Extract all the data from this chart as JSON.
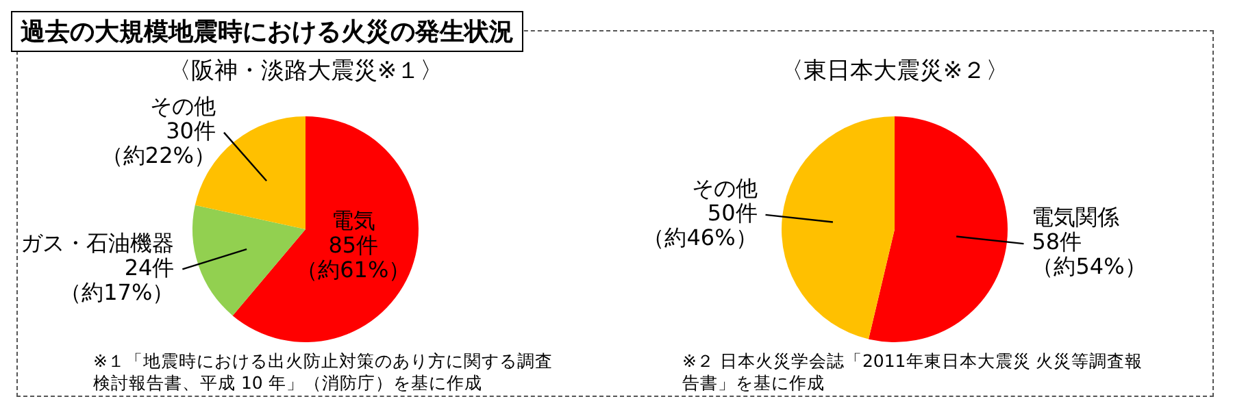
{
  "chart_data": [
    {
      "type": "pie",
      "title": "過去の大規模地震時における火災の発生状況",
      "subtitle": "〈阪神・淡路大震災※１〉",
      "categories": [
        "電気",
        "ガス・石油機器",
        "その他"
      ],
      "values": [
        85,
        24,
        30
      ],
      "colors": [
        "#ff0000",
        "#92d050",
        "#ffc000"
      ],
      "value_labels": [
        "85件（約61%）",
        "24件（約17%）",
        "30件（約22%）"
      ],
      "annotations": [
        "※１「地震時における出火防止対策のあり方に関する調査検討報告書、平成 10 年」（消防庁）を基に作成"
      ]
    },
    {
      "type": "pie",
      "subtitle": "〈東日本大震災※２〉",
      "categories": [
        "電気関係",
        "その他"
      ],
      "values": [
        58,
        50
      ],
      "colors": [
        "#ff0000",
        "#ffc000"
      ],
      "value_labels": [
        "58件（約54%）",
        "50件（約46%）"
      ],
      "annotations": [
        "※２ 日本火災学会誌「2011年東日本大震災 火災等調査報告書」を基に作成"
      ]
    }
  ]
}
